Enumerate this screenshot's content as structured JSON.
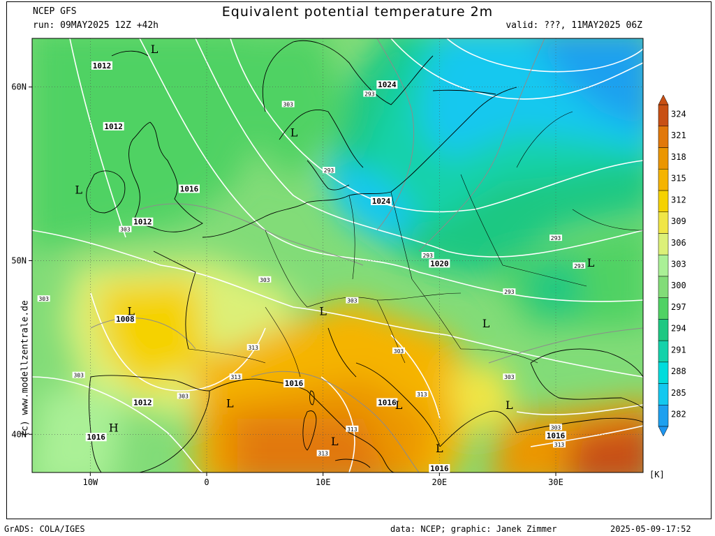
{
  "header": {
    "title": "Equivalent potential temperature 2m",
    "model": "NCEP GFS",
    "run": "run: 09MAY2025 12Z +42h",
    "valid": "valid: ???, 11MAY2025 06Z"
  },
  "footer": {
    "software": "GrADS: COLA/IGES",
    "credit": "data: NCEP; graphic: Janek Zimmer",
    "timestamp": "2025-05-09-17:52"
  },
  "watermark": "(c) www.modellzentrale.de",
  "axes": {
    "lat_labels": [
      {
        "text": "60N",
        "lat": 60
      },
      {
        "text": "50N",
        "lat": 50
      },
      {
        "text": "40N",
        "lat": 40
      }
    ],
    "lon_labels": [
      {
        "text": "10W",
        "lon": -10
      },
      {
        "text": "0",
        "lon": 0
      },
      {
        "text": "10E",
        "lon": 10
      },
      {
        "text": "20E",
        "lon": 20
      },
      {
        "text": "30E",
        "lon": 30
      }
    ],
    "lon_range": [
      -15,
      37.5
    ],
    "lat_range": [
      37.8,
      62.8
    ]
  },
  "colorbar": {
    "unit": "[K]",
    "levels": [
      "282",
      "285",
      "288",
      "291",
      "294",
      "297",
      "300",
      "303",
      "306",
      "309",
      "312",
      "315",
      "318",
      "321",
      "324"
    ],
    "colors": [
      "#1ea0ef",
      "#14c8ef",
      "#00dcdc",
      "#14d2aa",
      "#1ec882",
      "#50d264",
      "#82dc78",
      "#aaf096",
      "#dcf078",
      "#f0e646",
      "#f5d200",
      "#f5b400",
      "#eb9600",
      "#e1780a",
      "#c85014"
    ]
  },
  "pressure_labels": [
    {
      "text": "1012",
      "lon": -9,
      "lat": 61.2
    },
    {
      "text": "1012",
      "lon": -8,
      "lat": 57.7
    },
    {
      "text": "1016",
      "lon": -1.5,
      "lat": 54.1
    },
    {
      "text": "1012",
      "lon": -5.5,
      "lat": 52.2
    },
    {
      "text": "1024",
      "lon": 15.5,
      "lat": 60.1
    },
    {
      "text": "1024",
      "lon": 15,
      "lat": 53.4
    },
    {
      "text": "1020",
      "lon": 20,
      "lat": 49.8
    },
    {
      "text": "1008",
      "lon": -7,
      "lat": 46.6
    },
    {
      "text": "1016",
      "lon": 7.5,
      "lat": 42.9
    },
    {
      "text": "1016",
      "lon": 15.5,
      "lat": 41.8
    },
    {
      "text": "1012",
      "lon": -5.5,
      "lat": 41.8
    },
    {
      "text": "1016",
      "lon": -9.5,
      "lat": 39.8
    },
    {
      "text": "1016",
      "lon": 30,
      "lat": 39.9
    },
    {
      "text": "1016",
      "lon": 20,
      "lat": 38.0
    }
  ],
  "theta_labels": [
    {
      "text": "303",
      "lon": 7,
      "lat": 59.0
    },
    {
      "text": "293",
      "lon": 14,
      "lat": 59.6
    },
    {
      "text": "293",
      "lon": 10.5,
      "lat": 55.2
    },
    {
      "text": "303",
      "lon": -7,
      "lat": 51.8
    },
    {
      "text": "303",
      "lon": 5,
      "lat": 48.9
    },
    {
      "text": "303",
      "lon": -14,
      "lat": 47.8
    },
    {
      "text": "303",
      "lon": 12.5,
      "lat": 47.7
    },
    {
      "text": "313",
      "lon": 4,
      "lat": 45.0
    },
    {
      "text": "303",
      "lon": 16.5,
      "lat": 44.8
    },
    {
      "text": "303",
      "lon": -11,
      "lat": 43.4
    },
    {
      "text": "313",
      "lon": 2.5,
      "lat": 43.3
    },
    {
      "text": "303",
      "lon": -2,
      "lat": 42.2
    },
    {
      "text": "313",
      "lon": 18.5,
      "lat": 42.3
    },
    {
      "text": "313",
      "lon": 12.5,
      "lat": 40.3
    },
    {
      "text": "313",
      "lon": 10,
      "lat": 38.9
    },
    {
      "text": "303",
      "lon": 26,
      "lat": 43.3
    },
    {
      "text": "303",
      "lon": 30,
      "lat": 40.4
    },
    {
      "text": "313",
      "lon": 30.3,
      "lat": 39.4
    },
    {
      "text": "293",
      "lon": 19,
      "lat": 50.3
    },
    {
      "text": "293",
      "lon": 30,
      "lat": 51.3
    },
    {
      "text": "293",
      "lon": 32,
      "lat": 49.7
    },
    {
      "text": "293",
      "lon": 26,
      "lat": 48.2
    }
  ],
  "centers": [
    {
      "type": "L",
      "lon": -4.5,
      "lat": 62.2
    },
    {
      "type": "L",
      "lon": -11,
      "lat": 54.1
    },
    {
      "type": "L",
      "lon": 7.5,
      "lat": 57.4
    },
    {
      "type": "L",
      "lon": -6.5,
      "lat": 47.1
    },
    {
      "type": "L",
      "lon": 10,
      "lat": 47.1
    },
    {
      "type": "L",
      "lon": 2,
      "lat": 41.8
    },
    {
      "type": "L",
      "lon": 11,
      "lat": 39.6
    },
    {
      "type": "L",
      "lon": 16.5,
      "lat": 41.7
    },
    {
      "type": "L",
      "lon": 20,
      "lat": 39.2
    },
    {
      "type": "L",
      "lon": 24,
      "lat": 46.4
    },
    {
      "type": "L",
      "lon": 26,
      "lat": 41.7
    },
    {
      "type": "L",
      "lon": 33,
      "lat": 49.9
    },
    {
      "type": "H",
      "lon": -8,
      "lat": 40.4
    }
  ]
}
